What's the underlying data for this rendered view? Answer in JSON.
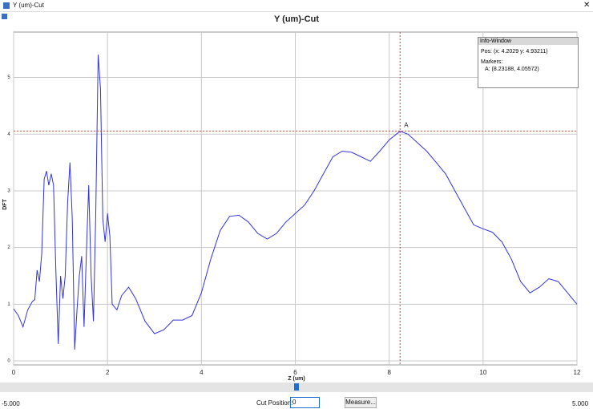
{
  "window": {
    "title": "Y (um)-Cut"
  },
  "chart_data": {
    "type": "line",
    "title": "Y (um)-Cut",
    "x_label": "Z (um)",
    "y_label": "DFT",
    "x": [
      0,
      0.1,
      0.2,
      0.3,
      0.4,
      0.45,
      0.5,
      0.55,
      0.6,
      0.65,
      0.7,
      0.75,
      0.8,
      0.85,
      0.9,
      0.95,
      1.0,
      1.05,
      1.1,
      1.15,
      1.2,
      1.25,
      1.3,
      1.35,
      1.4,
      1.45,
      1.5,
      1.55,
      1.6,
      1.65,
      1.7,
      1.75,
      1.8,
      1.85,
      1.9,
      1.95,
      2.0,
      2.05,
      2.1,
      2.2,
      2.3,
      2.45,
      2.6,
      2.8,
      3.0,
      3.2,
      3.4,
      3.6,
      3.8,
      4.0,
      4.2,
      4.4,
      4.6,
      4.8,
      5.0,
      5.2,
      5.4,
      5.6,
      5.8,
      6.0,
      6.2,
      6.4,
      6.6,
      6.8,
      7.0,
      7.2,
      7.4,
      7.6,
      7.8,
      8.0,
      8.23,
      8.4,
      8.6,
      8.8,
      9.0,
      9.2,
      9.4,
      9.6,
      9.8,
      10.0,
      10.2,
      10.4,
      10.6,
      10.8,
      11.0,
      11.2,
      11.4,
      11.6,
      11.8,
      12.0
    ],
    "series": [
      {
        "color": "#3333dd",
        "values": [
          0.92,
          0.8,
          0.6,
          0.9,
          1.05,
          1.08,
          1.6,
          1.4,
          1.9,
          3.2,
          3.35,
          3.1,
          3.3,
          3.1,
          1.6,
          0.3,
          1.5,
          1.1,
          1.5,
          2.8,
          3.5,
          2.5,
          0.2,
          0.9,
          1.5,
          1.85,
          0.6,
          1.9,
          3.1,
          1.5,
          0.7,
          2.6,
          5.4,
          4.8,
          2.5,
          2.1,
          2.6,
          2.2,
          1.0,
          0.9,
          1.15,
          1.3,
          1.1,
          0.7,
          0.48,
          0.55,
          0.72,
          0.72,
          0.8,
          1.2,
          1.8,
          2.3,
          2.55,
          2.57,
          2.45,
          2.25,
          2.15,
          2.25,
          2.45,
          2.6,
          2.75,
          3.0,
          3.3,
          3.6,
          3.7,
          3.68,
          3.6,
          3.52,
          3.7,
          3.9,
          4.05,
          4.0,
          3.85,
          3.7,
          3.5,
          3.3,
          3.0,
          2.7,
          2.4,
          2.33,
          2.27,
          2.1,
          1.8,
          1.4,
          1.2,
          1.3,
          1.45,
          1.4,
          1.2,
          1.0
        ]
      }
    ],
    "xlim": [
      0,
      12
    ],
    "ylim": [
      -0.07,
      5.8
    ],
    "xticks": [
      0,
      2,
      4,
      6,
      8,
      10,
      12
    ],
    "yticks": [
      0,
      1,
      2,
      3,
      4,
      5
    ],
    "grid": true,
    "marker": {
      "label": "A",
      "x": 8.23188,
      "y": 4.05572
    }
  },
  "info_window": {
    "title": "Info-Window",
    "position": "Pos:  (x: 4.2029  y: 4.93211)",
    "markers_heading": "Markers:",
    "markers": [
      "A: (8.23188, 4.05572)"
    ]
  },
  "controls": {
    "slider_min": "-5.000",
    "slider_max": "5.000",
    "cut_position_label": "Cut Position:",
    "cut_position_value": "0",
    "measure_button": "Measure..."
  }
}
